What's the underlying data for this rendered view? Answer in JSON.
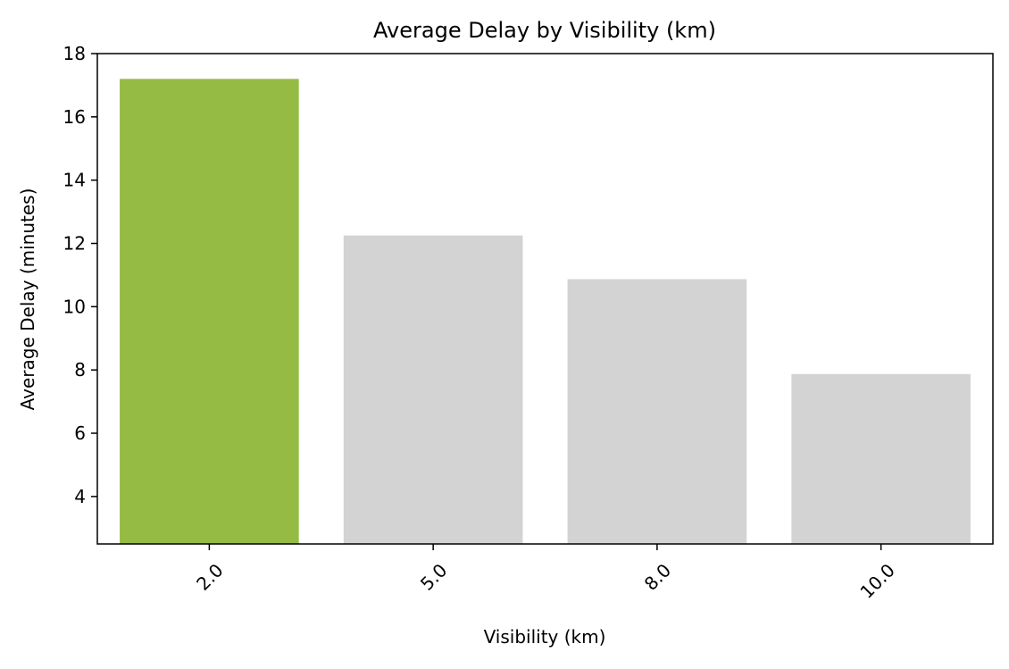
{
  "chart_data": {
    "type": "bar",
    "title": "Average Delay by Visibility (km)",
    "xlabel": "Visibility (km)",
    "ylabel": "Average Delay (minutes)",
    "categories": [
      "2.0",
      "5.0",
      "8.0",
      "10.0"
    ],
    "values": [
      17.2,
      12.25,
      10.87,
      7.87
    ],
    "ylim": [
      2.5,
      18
    ],
    "yticks": [
      4,
      6,
      8,
      10,
      12,
      14,
      16,
      18
    ],
    "ytick_labels": [
      "4",
      "6",
      "8",
      "10",
      "12",
      "14",
      "16",
      "18"
    ],
    "xtick_rotation_deg": 45,
    "grid": false,
    "legend": "none",
    "colors": {
      "highlight": "#95bb45",
      "default": "#d3d3d3",
      "axis": "#000000"
    },
    "bar_colors": [
      "#95bb45",
      "#d3d3d3",
      "#d3d3d3",
      "#d3d3d3"
    ]
  }
}
